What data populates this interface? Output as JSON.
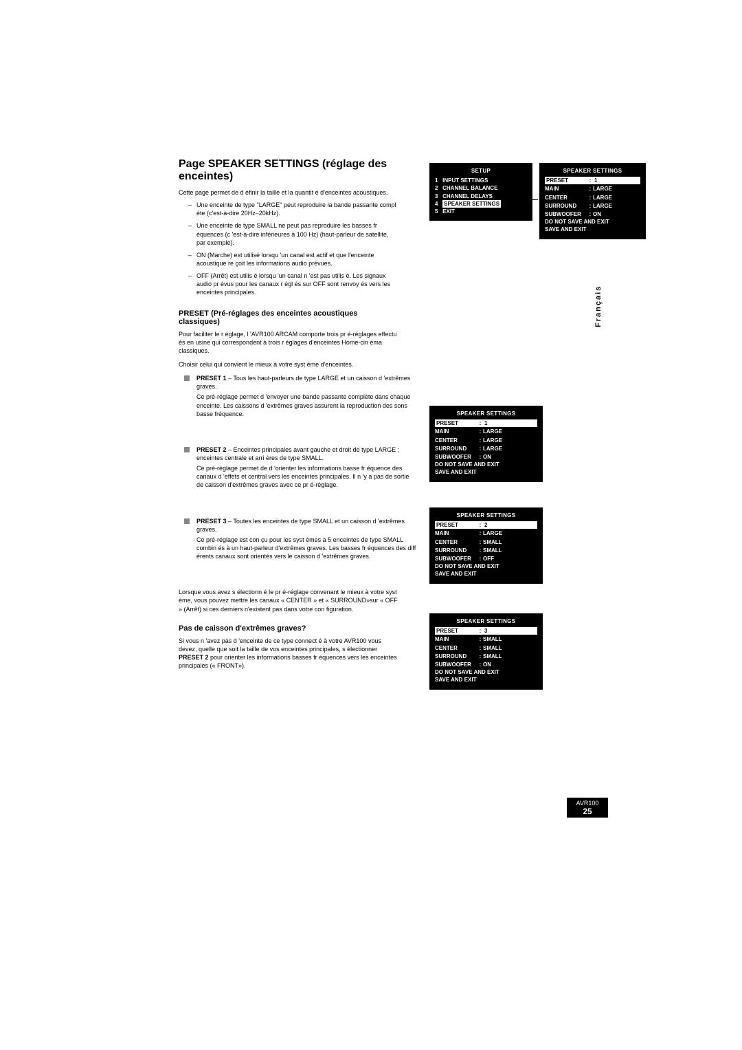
{
  "title": "Page SPEAKER SETTINGS (réglage des enceintes)",
  "intro": "Cette page permet de d éfinir la taille et la quantit é d'enceintes acoustiques.",
  "bullets": [
    "Une enceinte de type \"LARGE\" peut reproduire la bande passante compl ète (c'est-à-dire 20Hz–20kHz).",
    "Une enceinte de type SMALL ne peut pas reproduire les basses fr équences (c 'est-à-dire inférieures à 100 Hz) (haut-parleur de satellite, par exemple).",
    "ON (Marche) est utilisé lorsqu 'un canal est actif et que l'enceinte acoustique re çoit les informations audio prévues.",
    "OFF (Arrêt) est utilis é lorsqu 'un canal n 'est pas utilis é. Les signaux audio pr évus pour les canaux r égl és sur OFF sont renvoy és vers les enceintes principales."
  ],
  "preset_heading": "PRESET (Pré-réglages des enceintes acoustiques classiques)",
  "preset_intro": "Pour faciliter le r églage, l 'AVR100 ARCAM comporte trois pr é-réglages effectu és en usine qui correspondent à trois r églages d'enceintes Home-cin éma classiques.",
  "preset_choose": "Choisir celui qui convient le mieux à votre syst ème d'enceintes.",
  "preset1": {
    "label": "PRESET 1",
    "short": " – Tous les haut-parleurs de type LARGE et un caisson d 'extrêmes graves.",
    "more": "Ce pré-réglage permet d 'envoyer une bande passante complète dans chaque enceinte. Les caissons d 'extrêmes graves assurent la reproduction des sons basse fréquence."
  },
  "preset2": {
    "label": "PRESET 2",
    "short": " – Enceintes principales avant gauche et droit de type LARGE ; enceintes centrale et arri ères de type SMALL.",
    "more": "Ce pré-réglage permet de d 'orienter les informations basse fr équence des canaux d 'effets et central vers les enceintes principales. Il n 'y a pas de sortie de caisson d'extrêmes graves avec ce pr é-réglage."
  },
  "preset3": {
    "label": "PRESET 3",
    "short": " – Toutes les enceintes de type SMALL et un caisson d 'extrêmes graves.",
    "more": "Ce pré-réglage est con çu pour les syst èmes à 5 enceintes de type SMALL combin és à un haut-parleur d'extrêmes graves. Les basses fr équences des diff érents canaux sont orientés vers le caisson d 'extrêmes graves."
  },
  "after_presets": "Lorsque vous avez s électionn é le pr é-réglage convenant le mieux à votre syst ème, vous pouvez mettre les canaux « CENTER » et « SURROUND»sur « OFF » (Arrêt) si ces derniers n'existent pas dans votre con figuration.",
  "no_sub_heading": "Pas de caisson d'extrêmes graves?",
  "no_sub_text_a": "Si vous n 'avez pas d 'enceinte de ce type connect é à votre AVR100 vous devez, quelle que soit la taille de vos enceintes principales, s électionner ",
  "no_sub_bold": "PRESET 2",
  "no_sub_text_b": " pour orienter les informations basses fr équences vers les enceintes principales (« FRONT»).",
  "side_tab": "Français",
  "footer_model": "AVR100",
  "footer_page": "25",
  "setup_panel": {
    "title": "SETUP",
    "items": [
      {
        "n": "1",
        "t": "INPUT SETTINGS"
      },
      {
        "n": "2",
        "t": "CHANNEL BALANCE"
      },
      {
        "n": "3",
        "t": "CHANNEL DELAYS"
      },
      {
        "n": "4",
        "t": "SPEAKER SETTINGS",
        "hl": true
      },
      {
        "n": "5",
        "t": "EXIT"
      }
    ]
  },
  "speaker_top": {
    "title": "SPEAKER SETTINGS",
    "rows": [
      {
        "k": "PRESET",
        "v": "1",
        "hl": true
      },
      {
        "k": "MAIN",
        "v": "LARGE"
      },
      {
        "k": "CENTER",
        "v": "LARGE"
      },
      {
        "k": "SURROUND",
        "v": "LARGE"
      },
      {
        "k": "SUBWOOFER",
        "v": "ON"
      }
    ],
    "foot1": "DO NOT SAVE AND EXIT",
    "foot2": "SAVE AND EXIT"
  },
  "preset1_panel": {
    "title": "SPEAKER SETTINGS",
    "rows": [
      {
        "k": "PRESET",
        "v": "1",
        "hl": true
      },
      {
        "k": "MAIN",
        "v": "LARGE"
      },
      {
        "k": "CENTER",
        "v": "LARGE"
      },
      {
        "k": "SURROUND",
        "v": "LARGE"
      },
      {
        "k": "SUBWOOFER",
        "v": "ON"
      }
    ],
    "foot1": "DO NOT SAVE AND EXIT",
    "foot2": "SAVE AND EXIT"
  },
  "preset2_panel": {
    "title": "SPEAKER SETTINGS",
    "rows": [
      {
        "k": "PRESET",
        "v": "2",
        "hl": true
      },
      {
        "k": "MAIN",
        "v": "LARGE"
      },
      {
        "k": "CENTER",
        "v": "SMALL"
      },
      {
        "k": "SURROUND",
        "v": "SMALL"
      },
      {
        "k": "SUBWOOFER",
        "v": "OFF"
      }
    ],
    "foot1": "DO NOT SAVE AND EXIT",
    "foot2": "SAVE AND EXIT"
  },
  "preset3_panel": {
    "title": "SPEAKER SETTINGS",
    "rows": [
      {
        "k": "PRESET",
        "v": "3",
        "hl": true
      },
      {
        "k": "MAIN",
        "v": "SMALL"
      },
      {
        "k": "CENTER",
        "v": "SMALL"
      },
      {
        "k": "SURROUND",
        "v": "SMALL"
      },
      {
        "k": "SUBWOOFER",
        "v": "ON"
      }
    ],
    "foot1": "DO NOT SAVE AND EXIT",
    "foot2": "SAVE AND EXIT"
  }
}
